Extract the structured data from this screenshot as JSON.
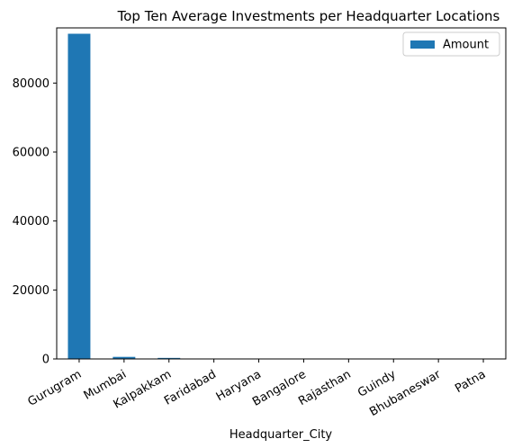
{
  "chart_data": {
    "type": "bar",
    "title": "Top Ten Average Investments per Headquarter Locations",
    "xlabel": "Headquarter_City",
    "ylabel": "",
    "categories": [
      "Gurugram",
      "Mumbai",
      "Kalpakkam",
      "Faridabad",
      "Haryana",
      "Bangalore",
      "Rajasthan",
      "Guindy",
      "Bhubaneswar",
      "Patna"
    ],
    "series": [
      {
        "name": "Amount",
        "values": [
          94300,
          600,
          300,
          70,
          60,
          50,
          40,
          35,
          30,
          25
        ],
        "color": "#1f77b4"
      }
    ],
    "ylim": [
      0,
      96000
    ],
    "yticks": [
      0,
      20000,
      40000,
      60000,
      80000
    ],
    "grid": false,
    "legend_position": "upper-right"
  }
}
